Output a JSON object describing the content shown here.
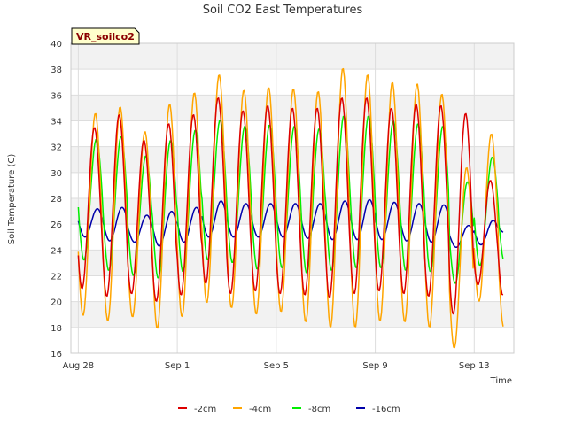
{
  "chart_data": {
    "type": "line",
    "title": "Soil CO2 East Temperatures",
    "xlabel": "Time",
    "ylabel": "Soil Temperature (C)",
    "badge": "VR_soilco2",
    "ylim": [
      16,
      40
    ],
    "yticks": [
      16,
      18,
      20,
      22,
      24,
      26,
      28,
      30,
      32,
      34,
      36,
      38,
      40
    ],
    "xlim_days": [
      -0.3,
      17.6
    ],
    "xticks": [
      {
        "label": "Aug 28",
        "day": 0
      },
      {
        "label": "Sep 1",
        "day": 4
      },
      {
        "label": "Sep 5",
        "day": 8
      },
      {
        "label": "Sep 9",
        "day": 12
      },
      {
        "label": "Sep 13",
        "day": 16
      }
    ],
    "x_units": "days since Aug 28",
    "series": [
      {
        "name": "-2cm",
        "color": "#dd0000",
        "daily_max": [
          33.5,
          34.5,
          32.5,
          33.8,
          34.5,
          35.8,
          34.8,
          35.2,
          35.0,
          35.0,
          35.8,
          35.8,
          35.0,
          35.3,
          35.2,
          34.6,
          29.4,
          31.7
        ],
        "daily_min": [
          21.0,
          20.4,
          20.6,
          20.0,
          20.5,
          21.4,
          20.6,
          20.8,
          20.6,
          20.5,
          20.3,
          20.6,
          20.8,
          20.6,
          20.4,
          19.0,
          21.3,
          20.5
        ]
      },
      {
        "name": "-4cm",
        "color": "#ffa500",
        "daily_max": [
          34.6,
          35.1,
          33.2,
          35.3,
          36.2,
          37.6,
          36.4,
          36.6,
          36.5,
          36.3,
          38.1,
          37.6,
          37.0,
          36.9,
          36.1,
          30.4,
          33.0,
          31.5
        ],
        "daily_min": [
          18.9,
          18.5,
          18.8,
          17.9,
          18.8,
          19.9,
          19.5,
          19.0,
          19.2,
          18.4,
          18.0,
          18.0,
          18.5,
          18.4,
          18.0,
          16.4,
          20.0,
          18.0
        ]
      },
      {
        "name": "-8cm",
        "color": "#00ee00",
        "daily_max": [
          32.6,
          32.8,
          31.3,
          32.5,
          33.3,
          34.1,
          33.6,
          33.7,
          33.6,
          33.4,
          34.4,
          34.4,
          34.0,
          33.8,
          33.6,
          29.3,
          31.2,
          30.0
        ],
        "daily_min": [
          23.2,
          22.4,
          22.0,
          21.8,
          22.3,
          23.2,
          23.0,
          22.5,
          22.6,
          22.2,
          22.4,
          22.6,
          22.6,
          22.4,
          22.3,
          21.4,
          22.8,
          23.0
        ]
      },
      {
        "name": "-16cm",
        "color": "#0000aa",
        "daily_max": [
          27.2,
          27.3,
          26.7,
          27.0,
          27.3,
          27.8,
          27.6,
          27.6,
          27.6,
          27.6,
          27.8,
          27.9,
          27.7,
          27.6,
          27.5,
          25.9,
          26.3,
          26.0
        ],
        "daily_min": [
          25.0,
          24.7,
          24.6,
          24.3,
          24.6,
          25.0,
          25.0,
          25.0,
          25.0,
          24.9,
          24.8,
          24.8,
          24.8,
          24.7,
          24.6,
          24.2,
          24.4,
          25.3
        ]
      }
    ],
    "legend": [
      "-2cm",
      "-4cm",
      "-8cm",
      "-16cm"
    ],
    "legend_position": "bottom-center",
    "grid": true
  }
}
